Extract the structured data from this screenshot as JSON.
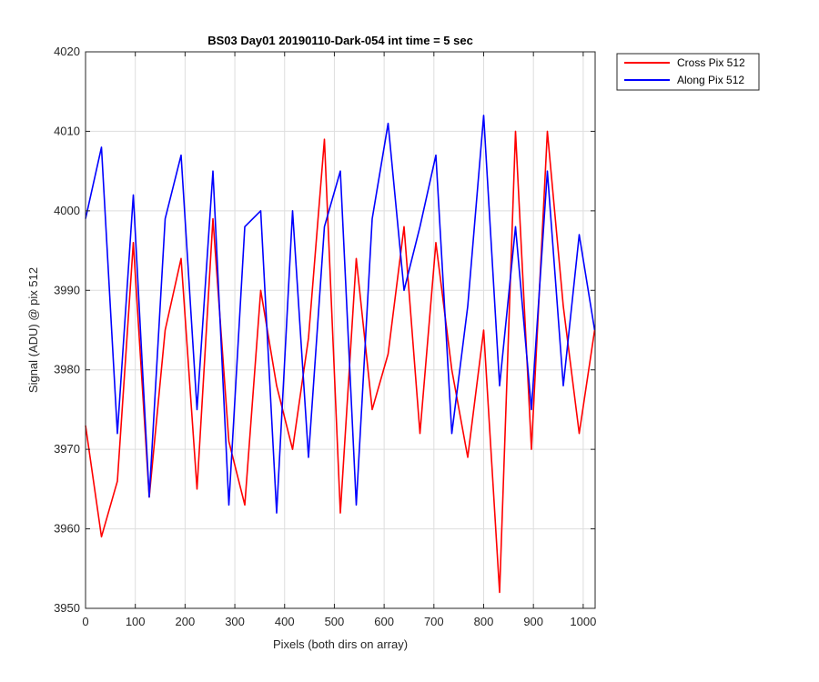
{
  "chart_data": {
    "type": "line",
    "title": "BS03 Day01 20190110-Dark-054 int time = 5 sec",
    "xlabel": "Pixels (both dirs on array)",
    "ylabel": "Signal (ADU) @ pix 512",
    "xlim": [
      0,
      1024
    ],
    "ylim": [
      3950,
      4020
    ],
    "xticks": [
      0,
      100,
      200,
      300,
      400,
      500,
      600,
      700,
      800,
      900,
      1000
    ],
    "yticks": [
      3950,
      3960,
      3970,
      3980,
      3990,
      4000,
      4010,
      4020
    ],
    "grid": true,
    "legend_position": "outside-top-right",
    "series": [
      {
        "name": "Cross Pix 512",
        "color": "#ff0000",
        "x": [
          0,
          32,
          64,
          96,
          128,
          160,
          192,
          224,
          256,
          288,
          320,
          352,
          384,
          416,
          448,
          480,
          512,
          544,
          576,
          608,
          640,
          672,
          704,
          736,
          768,
          800,
          832,
          864,
          896,
          928,
          960,
          992,
          1023
        ],
        "values": [
          3973,
          3959,
          3966,
          3996,
          3964,
          3985,
          3994,
          3965,
          3999,
          3971,
          3963,
          3990,
          3978,
          3970,
          3984,
          4009,
          3962,
          3994,
          3975,
          3982,
          3998,
          3972,
          3996,
          3980,
          3969,
          3985,
          3952,
          4010,
          3970,
          4010,
          3988,
          3972,
          3985
        ]
      },
      {
        "name": "Along Pix 512",
        "color": "#0000ff",
        "x": [
          0,
          32,
          64,
          96,
          128,
          160,
          192,
          224,
          256,
          288,
          320,
          352,
          384,
          416,
          448,
          480,
          512,
          544,
          576,
          608,
          640,
          672,
          704,
          736,
          768,
          800,
          832,
          864,
          896,
          928,
          960,
          992,
          1023
        ],
        "values": [
          3999,
          4008,
          3972,
          4002,
          3964,
          3999,
          4007,
          3975,
          4005,
          3963,
          3998,
          4000,
          3962,
          4000,
          3969,
          3998,
          4005,
          3963,
          3999,
          4011,
          3990,
          3998,
          4007,
          3972,
          3988,
          4012,
          3978,
          3998,
          3975,
          4005,
          3978,
          3997,
          3985
        ]
      }
    ]
  }
}
